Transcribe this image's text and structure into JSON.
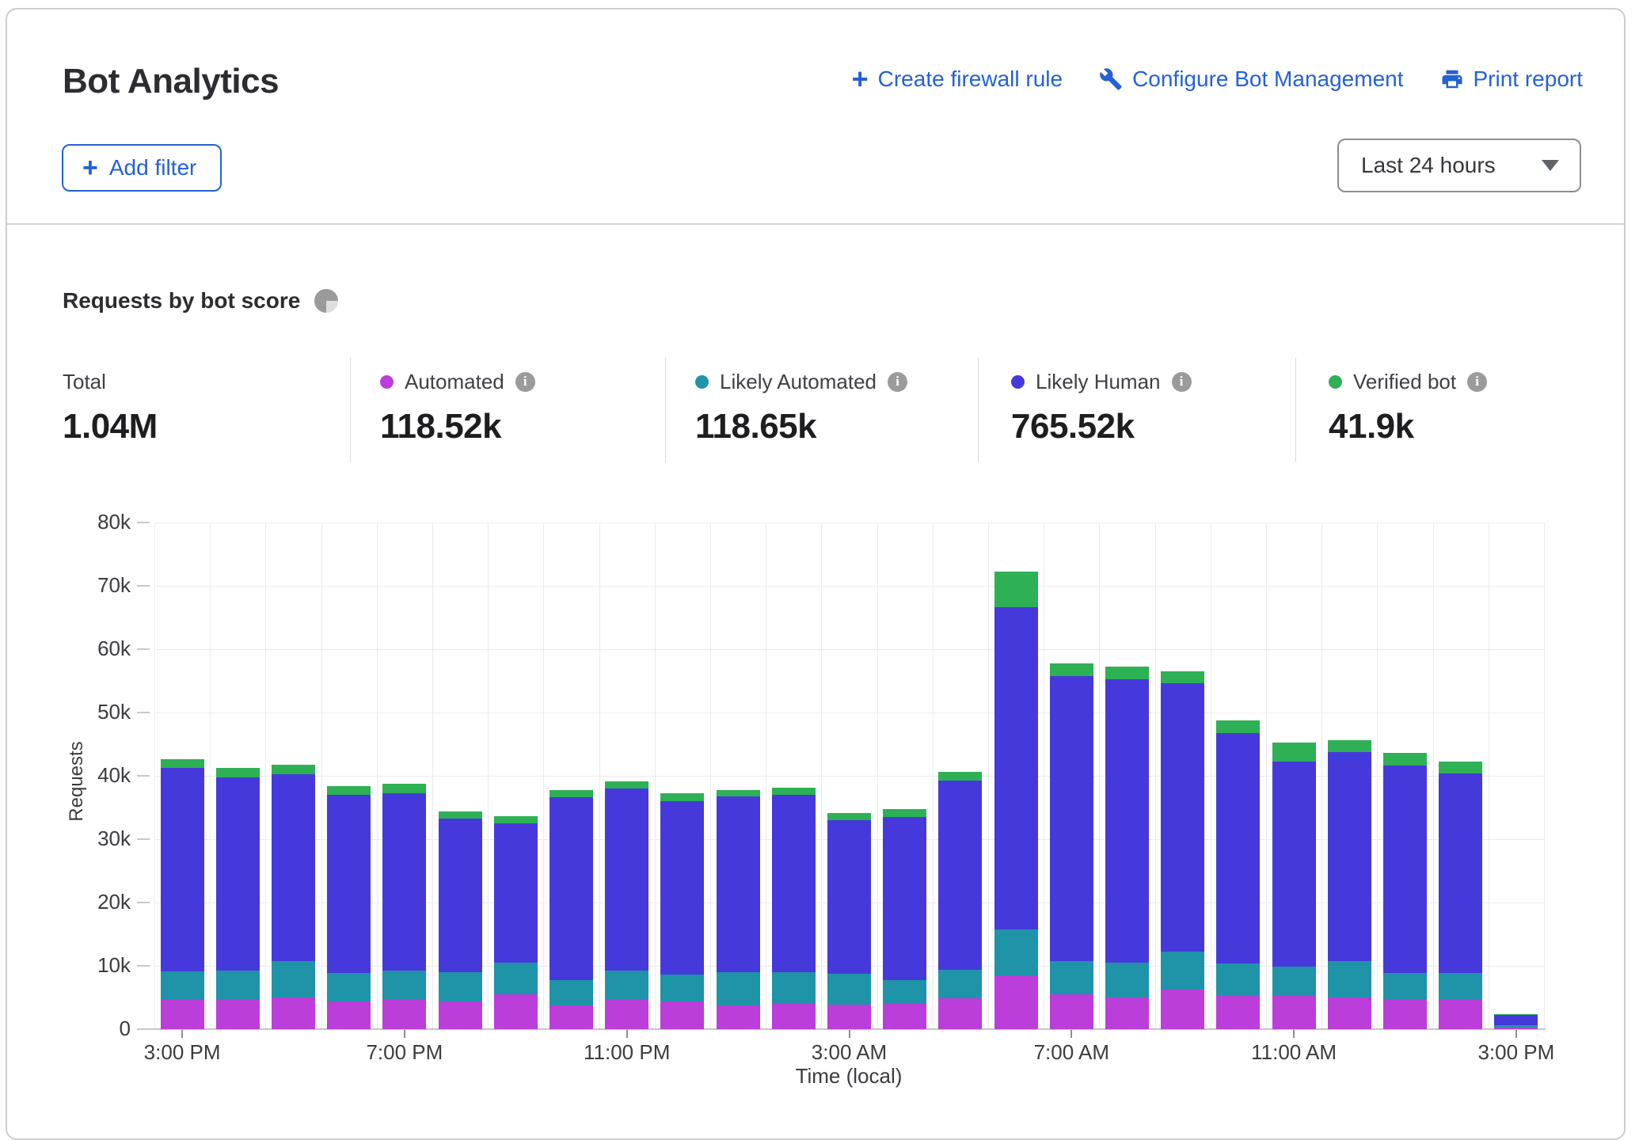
{
  "colors": {
    "accent_blue": "#2361d8"
  },
  "header": {
    "title": "Bot Analytics",
    "actions": [
      {
        "label": "Create firewall rule",
        "icon": "plus-icon"
      },
      {
        "label": "Configure Bot Management",
        "icon": "wrench-icon"
      },
      {
        "label": "Print report",
        "icon": "printer-icon"
      }
    ],
    "add_filter_label": "Add filter",
    "time_range_value": "Last 24 hours"
  },
  "section": {
    "title": "Requests by bot score"
  },
  "stats": {
    "total": {
      "label": "Total",
      "value": "1.04M"
    },
    "items": [
      {
        "label": "Automated",
        "value": "118.52k"
      },
      {
        "label": "Likely Automated",
        "value": "118.65k"
      },
      {
        "label": "Likely Human",
        "value": "765.52k"
      },
      {
        "label": "Verified bot",
        "value": "41.9k"
      }
    ]
  },
  "chart_data": {
    "type": "bar",
    "stacked": true,
    "title": "Requests by bot score",
    "xlabel": "Time (local)",
    "ylabel": "Requests",
    "unit": "thousands of requests",
    "ylim": [
      0,
      80
    ],
    "grid": true,
    "ytick_labels": [
      "0",
      "10k",
      "20k",
      "30k",
      "40k",
      "50k",
      "60k",
      "70k",
      "80k"
    ],
    "xtick_labels": [
      "3:00 PM",
      "7:00 PM",
      "11:00 PM",
      "3:00 AM",
      "7:00 AM",
      "11:00 AM",
      "3:00 PM"
    ],
    "xtick_every": 4,
    "categories": [
      "3:00 PM",
      "4:00 PM",
      "5:00 PM",
      "6:00 PM",
      "7:00 PM",
      "8:00 PM",
      "9:00 PM",
      "10:00 PM",
      "11:00 PM",
      "12:00 AM",
      "1:00 AM",
      "2:00 AM",
      "3:00 AM",
      "4:00 AM",
      "5:00 AM",
      "6:00 AM",
      "7:00 AM",
      "8:00 AM",
      "9:00 AM",
      "10:00 AM",
      "11:00 AM",
      "12:00 PM",
      "1:00 PM",
      "2:00 PM",
      "3:00 PM"
    ],
    "series": [
      {
        "name": "Automated",
        "color": "#bb3dda",
        "values": [
          4.6,
          4.6,
          5.0,
          4.4,
          4.6,
          4.4,
          5.5,
          3.8,
          4.8,
          4.4,
          3.8,
          4.0,
          3.9,
          4.1,
          4.9,
          8.5,
          5.5,
          5.0,
          6.2,
          5.4,
          5.3,
          5.0,
          4.8,
          4.6,
          0.3
        ]
      },
      {
        "name": "Likely Automated",
        "color": "#1f93a8",
        "values": [
          4.5,
          4.6,
          5.8,
          4.5,
          4.6,
          4.6,
          5.0,
          4.0,
          4.5,
          4.2,
          5.2,
          5.0,
          4.9,
          3.7,
          4.5,
          7.3,
          5.3,
          5.5,
          6.0,
          5.0,
          4.6,
          5.7,
          4.1,
          4.3,
          0.3
        ]
      },
      {
        "name": "Likely Human",
        "color": "#4639db",
        "values": [
          32.2,
          30.6,
          29.4,
          28.1,
          28.0,
          24.3,
          22.0,
          28.8,
          28.7,
          27.4,
          27.8,
          28.0,
          24.2,
          25.7,
          29.8,
          50.8,
          45.0,
          44.8,
          42.4,
          36.4,
          32.4,
          33.1,
          32.7,
          31.5,
          1.7
        ]
      },
      {
        "name": "Verified bot",
        "color": "#2eb055",
        "values": [
          1.3,
          1.4,
          1.5,
          1.4,
          1.5,
          1.1,
          1.1,
          1.1,
          1.1,
          1.2,
          1.0,
          1.1,
          1.1,
          1.3,
          1.4,
          5.7,
          1.9,
          1.9,
          1.9,
          1.9,
          3.0,
          1.8,
          2.0,
          1.8,
          0.1
        ]
      }
    ]
  }
}
